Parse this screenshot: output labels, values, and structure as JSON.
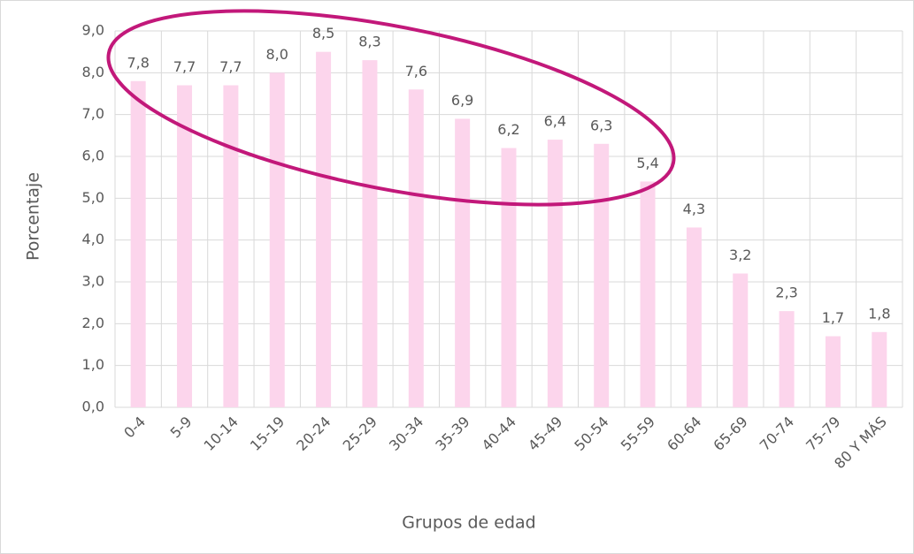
{
  "chart_data": {
    "type": "bar",
    "categories": [
      "0-4",
      "5-9",
      "10-14",
      "15-19",
      "20-24",
      "25-29",
      "30-34",
      "35-39",
      "40-44",
      "45-49",
      "50-54",
      "55-59",
      "60-64",
      "65-69",
      "70-74",
      "75-79",
      "80 Y MÁS"
    ],
    "values": [
      7.8,
      7.7,
      7.7,
      8.0,
      8.5,
      8.3,
      7.6,
      6.9,
      6.2,
      6.4,
      6.3,
      5.4,
      4.3,
      3.2,
      2.3,
      1.7,
      1.8
    ],
    "value_labels": [
      "7,8",
      "7,7",
      "7,7",
      "8,0",
      "8,5",
      "8,3",
      "7,6",
      "6,9",
      "6,2",
      "6,4",
      "6,3",
      "5,4",
      "4,3",
      "3,2",
      "2,3",
      "1,7",
      "1,8"
    ],
    "color": "#fcd5ec",
    "xlabel": "Grupos de edad",
    "ylabel": "Porcentaje",
    "ylim": [
      0,
      9
    ],
    "yticks": [
      {
        "value": 0,
        "label": "0,0"
      },
      {
        "value": 1,
        "label": "1,0"
      },
      {
        "value": 2,
        "label": "2,0"
      },
      {
        "value": 3,
        "label": "3,0"
      },
      {
        "value": 4,
        "label": "4,0"
      },
      {
        "value": 5,
        "label": "5,0"
      },
      {
        "value": 6,
        "label": "6,0"
      },
      {
        "value": 7,
        "label": "7,0"
      },
      {
        "value": 8,
        "label": "8,0"
      },
      {
        "value": 9,
        "label": "9,0"
      }
    ],
    "grid": true
  }
}
